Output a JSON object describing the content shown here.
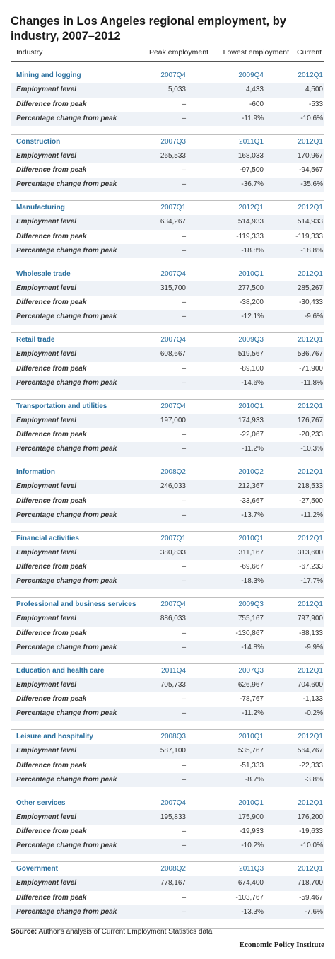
{
  "title": "Changes in Los Angeles regional employment, by industry, 2007–2012",
  "columns": {
    "industry": "Industry",
    "peak": "Peak employment",
    "lowest": "Lowest employment",
    "current": "Current"
  },
  "row_labels": {
    "level": "Employment level",
    "diff": "Difference from peak",
    "pct": "Percentage change from peak"
  },
  "sections": [
    {
      "name": "Mining and logging",
      "peak": "2007Q4",
      "lowest": "2009Q4",
      "current": "2012Q1",
      "level": [
        "5,033",
        "4,433",
        "4,500"
      ],
      "diff": [
        "–",
        "-600",
        "-533"
      ],
      "pct": [
        "–",
        "-11.9%",
        "-10.6%"
      ]
    },
    {
      "name": "Construction",
      "peak": "2007Q3",
      "lowest": "2011Q1",
      "current": "2012Q1",
      "level": [
        "265,533",
        "168,033",
        "170,967"
      ],
      "diff": [
        "–",
        "-97,500",
        "-94,567"
      ],
      "pct": [
        "–",
        "-36.7%",
        "-35.6%"
      ]
    },
    {
      "name": "Manufacturing",
      "peak": "2007Q1",
      "lowest": "2012Q1",
      "current": "2012Q1",
      "level": [
        "634,267",
        "514,933",
        "514,933"
      ],
      "diff": [
        "–",
        "-119,333",
        "-119,333"
      ],
      "pct": [
        "–",
        "-18.8%",
        "-18.8%"
      ]
    },
    {
      "name": "Wholesale trade",
      "peak": "2007Q4",
      "lowest": "2010Q1",
      "current": "2012Q1",
      "level": [
        "315,700",
        "277,500",
        "285,267"
      ],
      "diff": [
        "–",
        "-38,200",
        "-30,433"
      ],
      "pct": [
        "–",
        "-12.1%",
        "-9.6%"
      ]
    },
    {
      "name": "Retail trade",
      "peak": "2007Q4",
      "lowest": "2009Q3",
      "current": "2012Q1",
      "level": [
        "608,667",
        "519,567",
        "536,767"
      ],
      "diff": [
        "–",
        "-89,100",
        "-71,900"
      ],
      "pct": [
        "–",
        "-14.6%",
        "-11.8%"
      ]
    },
    {
      "name": "Transportation and utilities",
      "peak": "2007Q4",
      "lowest": "2010Q1",
      "current": "2012Q1",
      "level": [
        "197,000",
        "174,933",
        "176,767"
      ],
      "diff": [
        "–",
        "-22,067",
        "-20,233"
      ],
      "pct": [
        "–",
        "-11.2%",
        "-10.3%"
      ]
    },
    {
      "name": "Information",
      "peak": "2008Q2",
      "lowest": "2010Q2",
      "current": "2012Q1",
      "level": [
        "246,033",
        "212,367",
        "218,533"
      ],
      "diff": [
        "–",
        "-33,667",
        "-27,500"
      ],
      "pct": [
        "–",
        "-13.7%",
        "-11.2%"
      ]
    },
    {
      "name": "Financial activities",
      "peak": "2007Q1",
      "lowest": "2010Q1",
      "current": "2012Q1",
      "level": [
        "380,833",
        "311,167",
        "313,600"
      ],
      "diff": [
        "–",
        "-69,667",
        "-67,233"
      ],
      "pct": [
        "–",
        "-18.3%",
        "-17.7%"
      ]
    },
    {
      "name": "Professional and business services",
      "peak": "2007Q4",
      "lowest": "2009Q3",
      "current": "2012Q1",
      "level": [
        "886,033",
        "755,167",
        "797,900"
      ],
      "diff": [
        "–",
        "-130,867",
        "-88,133"
      ],
      "pct": [
        "–",
        "-14.8%",
        "-9.9%"
      ]
    },
    {
      "name": "Education and health care",
      "peak": "2011Q4",
      "lowest": "2007Q3",
      "current": "2012Q1",
      "level": [
        "705,733",
        "626,967",
        "704,600"
      ],
      "diff": [
        "–",
        "-78,767",
        "-1,133"
      ],
      "pct": [
        "–",
        "-11.2%",
        "-0.2%"
      ]
    },
    {
      "name": "Leisure and hospitality",
      "peak": "2008Q3",
      "lowest": "2010Q1",
      "current": "2012Q1",
      "level": [
        "587,100",
        "535,767",
        "564,767"
      ],
      "diff": [
        "–",
        "-51,333",
        "-22,333"
      ],
      "pct": [
        "–",
        "-8.7%",
        "-3.8%"
      ]
    },
    {
      "name": "Other services",
      "peak": "2007Q4",
      "lowest": "2010Q1",
      "current": "2012Q1",
      "level": [
        "195,833",
        "175,900",
        "176,200"
      ],
      "diff": [
        "–",
        "-19,933",
        "-19,633"
      ],
      "pct": [
        "–",
        "-10.2%",
        "-10.0%"
      ]
    },
    {
      "name": "Government",
      "peak": "2008Q2",
      "lowest": "2011Q3",
      "current": "2012Q1",
      "level": [
        "778,167",
        "674,400",
        "718,700"
      ],
      "diff": [
        "–",
        "-103,767",
        "-59,467"
      ],
      "pct": [
        "–",
        "-13.3%",
        "-7.6%"
      ]
    }
  ],
  "source": {
    "label": "Source:",
    "text": "Author's analysis of Current Employment Statistics data"
  },
  "brand": "Economic Policy Institute",
  "colors": {
    "accent": "#2a6f9e",
    "shade": "#eef2f7"
  }
}
